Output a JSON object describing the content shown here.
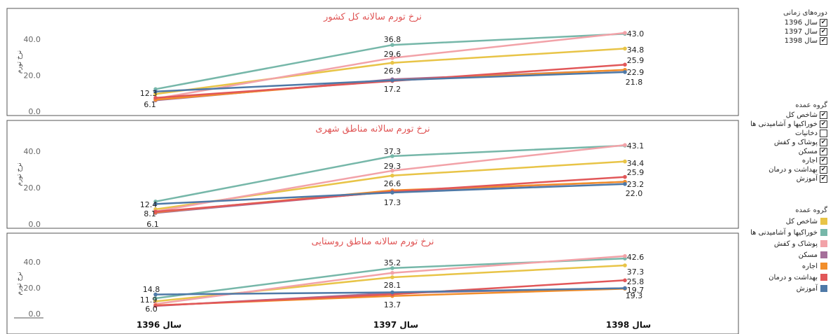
{
  "sidebar": {
    "period_title": "دوره‌های زمانی",
    "periods": [
      {
        "label": "سال 1396",
        "checked": true
      },
      {
        "label": "سال 1397",
        "checked": true
      },
      {
        "label": "سال 1398",
        "checked": true
      }
    ],
    "group_title": "گروه عمده",
    "groups": [
      {
        "label": "شاخص کل",
        "checked": true
      },
      {
        "label": "خوراکیها و آشامیدنی ها",
        "checked": true
      },
      {
        "label": "دخانیات",
        "checked": false
      },
      {
        "label": "پوشاک و کفش",
        "checked": true
      },
      {
        "label": "مسکن",
        "checked": true
      },
      {
        "label": "اجاره",
        "checked": true
      },
      {
        "label": "بهداشت و درمان",
        "checked": true
      },
      {
        "label": "آموزش",
        "checked": true
      }
    ],
    "legend_title": "گروه عمده",
    "legend": [
      {
        "label": "شاخص کل",
        "color": "#e8c447"
      },
      {
        "label": "خوراکیها و آشامیدنی ها",
        "color": "#76b7a9"
      },
      {
        "label": "پوشاک و کفش",
        "color": "#f2a2a8"
      },
      {
        "label": "مسکن",
        "color": "#a56f9a"
      },
      {
        "label": "اجاره",
        "color": "#f28e2b"
      },
      {
        "label": "بهداشت و درمان",
        "color": "#e15759"
      },
      {
        "label": "آموزش",
        "color": "#4e79a7"
      }
    ],
    "check_mark": "✔"
  },
  "chart_data": [
    {
      "type": "line",
      "title": "نرخ تورم سالانه کل کشور",
      "ylabel": "نرخ تورم",
      "ylim": [
        0,
        45
      ],
      "yticks": [
        "0.0",
        "20.0",
        "40.0"
      ],
      "categories": [
        "سال 1396",
        "سال 1397",
        "سال 1398"
      ],
      "series": [
        {
          "name": "شاخص کل",
          "color": "#e8c447",
          "values": [
            9.6,
            26.9,
            34.8
          ]
        },
        {
          "name": "خوراکیها و آشامیدنی ها",
          "color": "#76b7a9",
          "values": [
            12.3,
            36.8,
            43.0
          ]
        },
        {
          "name": "پوشاک و کفش",
          "color": "#f2a2a8",
          "values": [
            7.0,
            29.6,
            43.5
          ]
        },
        {
          "name": "مسکن",
          "color": "#a56f9a",
          "values": [
            6.1,
            17.8,
            22.9
          ]
        },
        {
          "name": "اجاره",
          "color": "#f28e2b",
          "values": [
            6.5,
            17.2,
            23.0
          ]
        },
        {
          "name": "بهداشت و درمان",
          "color": "#e15759",
          "values": [
            7.5,
            16.8,
            25.9
          ]
        },
        {
          "name": "آموزش",
          "color": "#4e79a7",
          "values": [
            11.0,
            17.2,
            21.8
          ]
        }
      ],
      "labels": [
        "12.3",
        "6.1",
        "36.8",
        "29.6",
        "26.9",
        "17.2",
        "43.0",
        "34.8",
        "25.9",
        "22.9",
        "21.8"
      ]
    },
    {
      "type": "line",
      "title": "نرخ تورم سالانه مناطق شهری",
      "ylabel": "نرخ تورم",
      "ylim": [
        0,
        45
      ],
      "yticks": [
        "0.0",
        "20.0",
        "40.0"
      ],
      "categories": [
        "سال 1396",
        "سال 1397",
        "سال 1398"
      ],
      "series": [
        {
          "name": "شاخص کل",
          "color": "#e8c447",
          "values": [
            8.1,
            26.6,
            34.4
          ]
        },
        {
          "name": "خوراکیها و آشامیدنی ها",
          "color": "#76b7a9",
          "values": [
            12.4,
            37.3,
            43.1
          ]
        },
        {
          "name": "پوشاک و کفش",
          "color": "#f2a2a8",
          "values": [
            7.0,
            29.3,
            43.4
          ]
        },
        {
          "name": "مسکن",
          "color": "#a56f9a",
          "values": [
            6.1,
            18.0,
            23.2
          ]
        },
        {
          "name": "اجاره",
          "color": "#f28e2b",
          "values": [
            6.5,
            18.5,
            23.2
          ]
        },
        {
          "name": "بهداشت و درمان",
          "color": "#e15759",
          "values": [
            6.8,
            17.8,
            25.9
          ]
        },
        {
          "name": "آموزش",
          "color": "#4e79a7",
          "values": [
            11.0,
            17.3,
            22.0
          ]
        }
      ],
      "labels": [
        "12.4",
        "8.1",
        "6.1",
        "37.3",
        "29.3",
        "26.6",
        "17.3",
        "43.1",
        "34.4",
        "25.9",
        "23.2",
        "22.0"
      ]
    },
    {
      "type": "line",
      "title": "نرخ تورم سالانه مناطق روستایی",
      "ylabel": "نرخ تورم",
      "ylim": [
        0,
        48
      ],
      "yticks": [
        "0.0",
        "20.0",
        "40.0"
      ],
      "categories": [
        "سال 1396",
        "سال 1397",
        "سال 1398"
      ],
      "series": [
        {
          "name": "شاخص کل",
          "color": "#e8c447",
          "values": [
            9.5,
            28.1,
            37.3
          ]
        },
        {
          "name": "خوراکیها و آشامیدنی ها",
          "color": "#76b7a9",
          "values": [
            11.9,
            35.2,
            42.6
          ]
        },
        {
          "name": "پوشاک و کفش",
          "color": "#f2a2a8",
          "values": [
            7.5,
            31.5,
            44.5
          ]
        },
        {
          "name": "مسکن",
          "color": "#a56f9a",
          "values": [
            6.0,
            16.0,
            19.7
          ]
        },
        {
          "name": "اجاره",
          "color": "#f28e2b",
          "values": [
            6.5,
            13.7,
            19.3
          ]
        },
        {
          "name": "بهداشت و درمان",
          "color": "#e15759",
          "values": [
            6.2,
            15.0,
            25.8
          ]
        },
        {
          "name": "آموزش",
          "color": "#4e79a7",
          "values": [
            14.8,
            16.5,
            19.7
          ]
        }
      ],
      "labels": [
        "14.8",
        "11.9",
        "6.0",
        "35.2",
        "28.1",
        "13.7",
        "42.6",
        "37.3",
        "25.8",
        "19.7",
        "19.3"
      ]
    }
  ]
}
